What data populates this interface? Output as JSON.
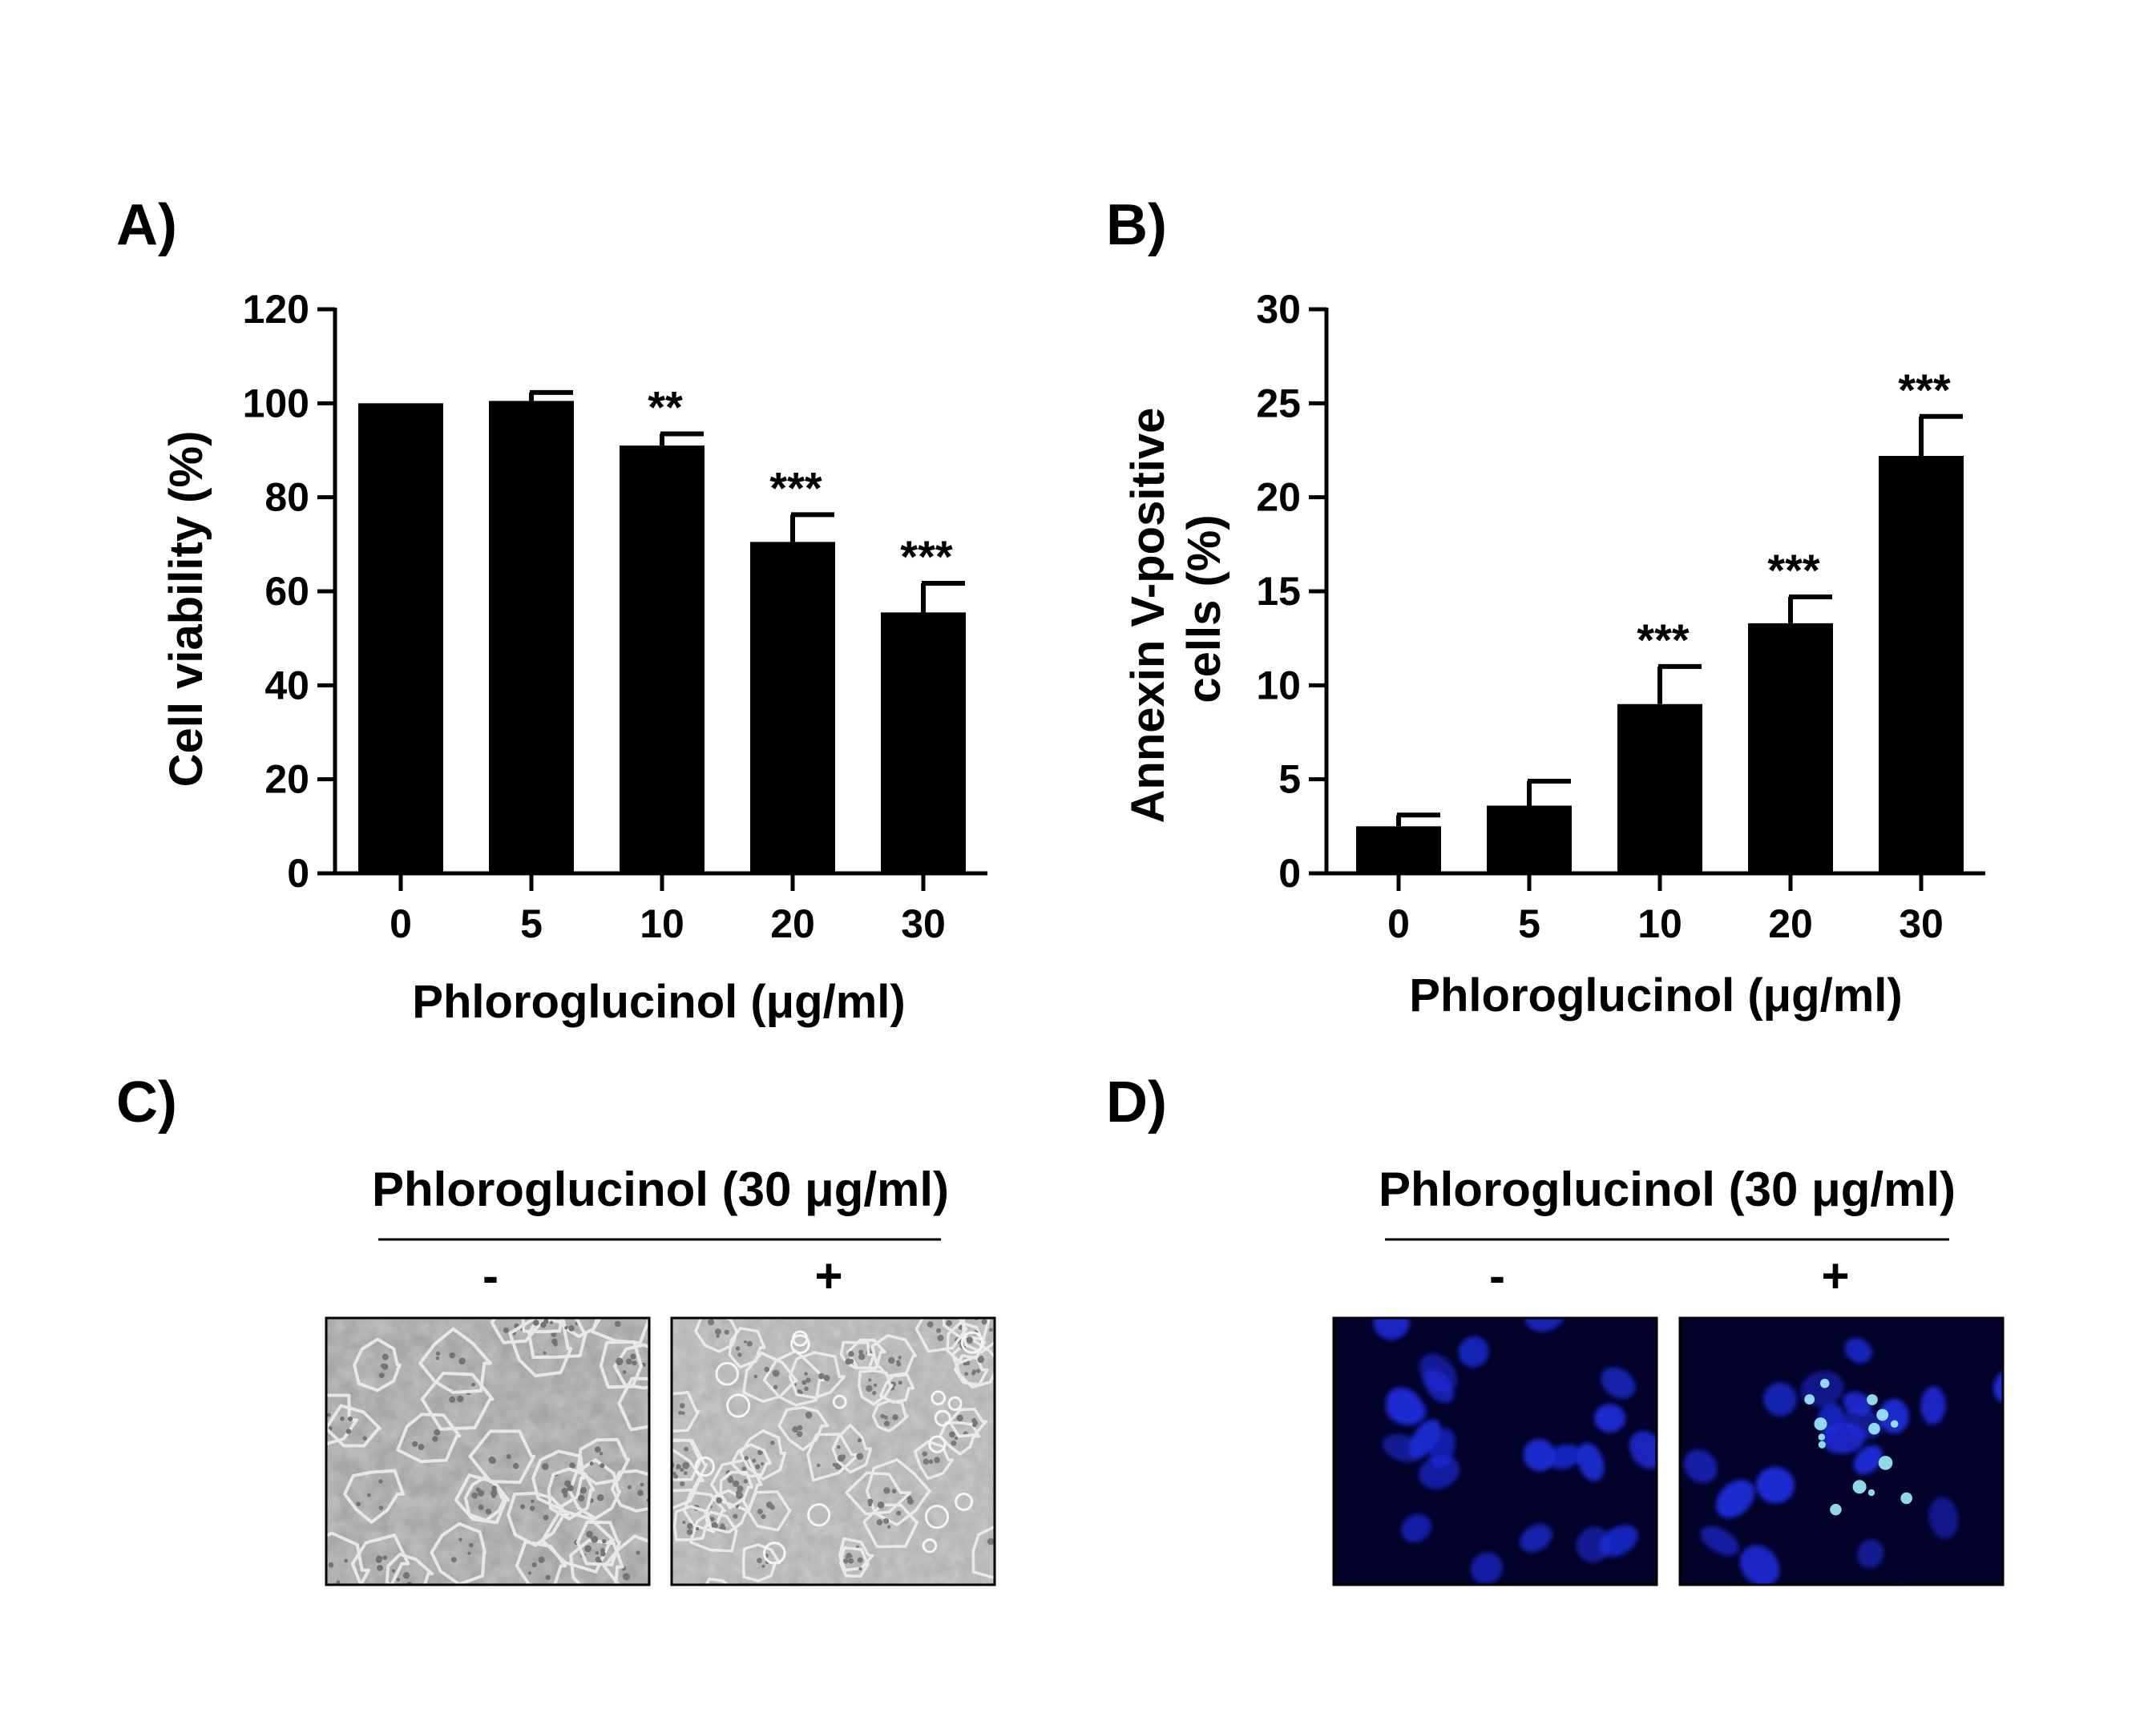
{
  "panels": {
    "a": {
      "letter": "A)"
    },
    "b": {
      "letter": "B)"
    },
    "c": {
      "letter": "C)",
      "treatment_label": "Phloroglucinol (30 μg/ml)",
      "minus": "-",
      "plus": "+"
    },
    "d": {
      "letter": "D)",
      "treatment_label": "Phloroglucinol (30 μg/ml)",
      "minus": "-",
      "plus": "+"
    }
  },
  "chart_data": [
    {
      "id": "a",
      "type": "bar",
      "xlabel": "Phloroglucinol (μg/ml)",
      "ylabel": "Cell viability (%)",
      "categories": [
        "0",
        "5",
        "10",
        "20",
        "30"
      ],
      "values": [
        100,
        100.5,
        91,
        70.5,
        55.5
      ],
      "errors": [
        0,
        1.8,
        2.5,
        5.8,
        6.2
      ],
      "significance": [
        "",
        "",
        "**",
        "***",
        "***"
      ],
      "ylim": [
        0,
        120
      ],
      "yticks": [
        "0",
        "20",
        "40",
        "60",
        "80",
        "100",
        "120"
      ],
      "bar_color": "#000000",
      "grid": false
    },
    {
      "id": "b",
      "type": "bar",
      "xlabel": "Phloroglucinol (μg/ml)",
      "ylabel_lines": [
        "Annexin V-positive",
        "cells (%)"
      ],
      "categories": [
        "0",
        "5",
        "10",
        "20",
        "30"
      ],
      "values": [
        2.5,
        3.6,
        9.0,
        13.3,
        22.2
      ],
      "errors": [
        0.6,
        1.3,
        2.0,
        1.4,
        2.1
      ],
      "significance": [
        "",
        "",
        "***",
        "***",
        "***"
      ],
      "ylim": [
        0,
        30
      ],
      "yticks": [
        "0",
        "5",
        "10",
        "15",
        "20",
        "25",
        "30"
      ],
      "bar_color": "#000000",
      "grid": false
    }
  ],
  "micrographs": {
    "phase_contrast_color": "#9c9c9c",
    "fluorescence_bg": "#02022a",
    "nucleus_color": "#1c2bd6",
    "condensed_color": "#9ff0ff"
  }
}
